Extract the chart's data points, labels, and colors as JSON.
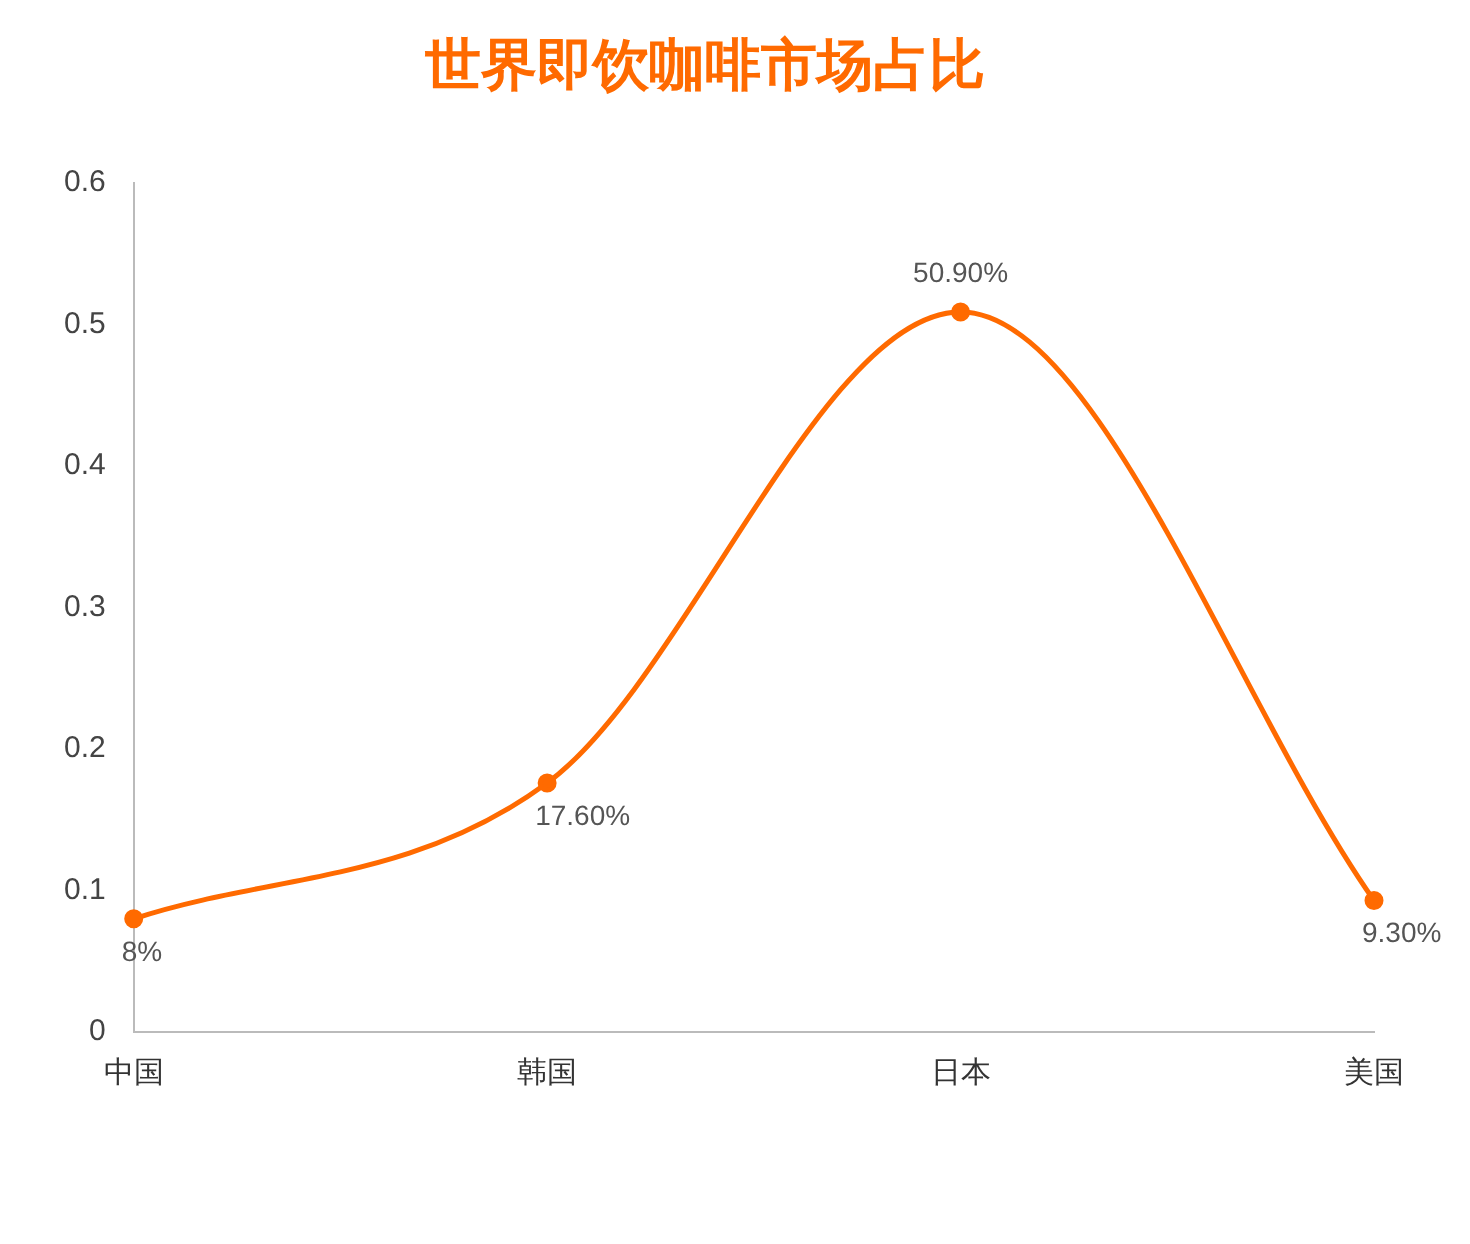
{
  "chart_data": {
    "type": "line",
    "title": "世界即饮咖啡市场占比",
    "categories": [
      "中国",
      "韩国",
      "日本",
      "美国"
    ],
    "series": [
      {
        "color": "#ff6a00",
        "values": [
          0.08,
          0.176,
          0.509,
          0.093
        ],
        "value_labels": [
          "8%",
          "17.60%",
          "50.90%",
          "9.30%"
        ]
      }
    ],
    "ylim": [
      0,
      0.6
    ],
    "yticks": [
      0,
      0.1,
      0.2,
      0.3,
      0.4,
      0.5,
      0.6
    ],
    "grid": false,
    "legend": false,
    "marker": "circle",
    "line_style": "solid"
  }
}
